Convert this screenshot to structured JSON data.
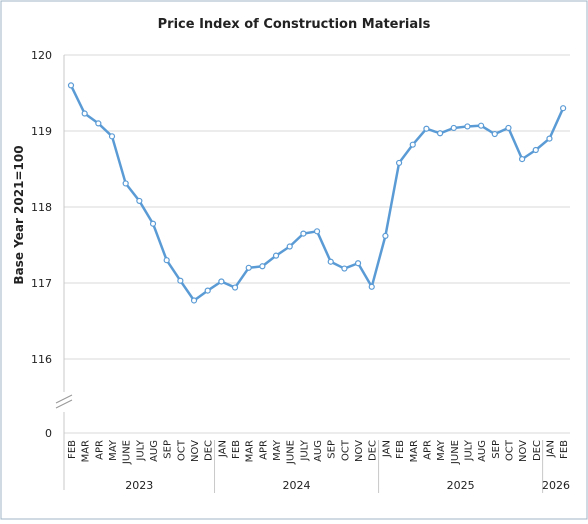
{
  "chart_data": {
    "type": "line",
    "title": "Price Index of Construction Materials",
    "ylabel": "Base Year 2021=100",
    "ylim": [
      116,
      120
    ],
    "yticks": [
      "120",
      "119",
      "118",
      "117",
      "116"
    ],
    "axis_break_tick": "0",
    "grid": "horizontal",
    "colors": {
      "line": "#5b9bd5",
      "grid": "#d9d9d9",
      "frame": "#9fb4c6"
    },
    "categories": [
      "FEB",
      "MAR",
      "APR",
      "MAY",
      "JUNE",
      "JULY",
      "AUG",
      "SEP",
      "OCT",
      "NOV",
      "DEC",
      "JAN",
      "FEB",
      "MAR",
      "APR",
      "MAY",
      "JUNE",
      "JULY",
      "AUG",
      "SEP",
      "OCT",
      "NOV",
      "DEC",
      "JAN",
      "FEB",
      "MAR",
      "APR",
      "MAY",
      "JUNE",
      "JULY",
      "AUG",
      "SEP",
      "OCT",
      "NOV",
      "DEC",
      "JAN",
      "FEB"
    ],
    "years": [
      {
        "label": "2023",
        "count": 11
      },
      {
        "label": "2024",
        "count": 12
      },
      {
        "label": "2025",
        "count": 12
      },
      {
        "label": "2026",
        "count": 2
      }
    ],
    "series": [
      {
        "values": [
          119.6,
          119.23,
          119.1,
          118.93,
          118.31,
          118.08,
          117.78,
          117.3,
          117.03,
          116.77,
          116.9,
          117.02,
          116.94,
          117.2,
          117.22,
          117.36,
          117.48,
          117.65,
          117.68,
          117.28,
          117.19,
          117.26,
          116.95,
          117.62,
          118.58,
          118.82,
          119.03,
          118.97,
          119.04,
          119.06,
          119.07,
          118.96,
          119.04,
          118.63,
          118.75,
          118.9,
          119.3
        ]
      }
    ]
  }
}
